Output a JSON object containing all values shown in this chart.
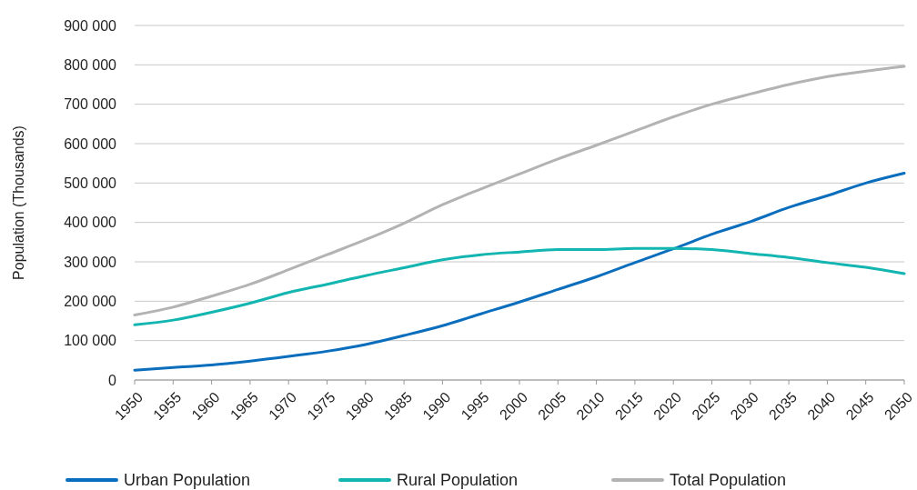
{
  "chart_data": {
    "type": "line",
    "ylabel": "Population (Thousands)",
    "categories": [
      "1950",
      "1955",
      "1960",
      "1965",
      "1970",
      "1975",
      "1980",
      "1985",
      "1990",
      "1995",
      "2000",
      "2005",
      "2010",
      "2015",
      "2020",
      "2025",
      "2030",
      "2035",
      "2040",
      "2045",
      "2050"
    ],
    "series": [
      {
        "name": "Urban Population",
        "color": "#0a6ebd",
        "values": [
          25000,
          32000,
          38000,
          48000,
          60000,
          73000,
          90000,
          113000,
          138000,
          168000,
          198000,
          230000,
          262000,
          298000,
          333000,
          370000,
          402000,
          438000,
          468000,
          500000,
          525000
        ]
      },
      {
        "name": "Rural Population",
        "color": "#13b5b1",
        "values": [
          140000,
          152000,
          172000,
          195000,
          222000,
          243000,
          265000,
          285000,
          305000,
          318000,
          325000,
          331000,
          331000,
          334000,
          334000,
          331000,
          321000,
          311000,
          298000,
          286000,
          270000
        ]
      },
      {
        "name": "Total Population",
        "color": "#b3b3b3",
        "values": [
          165000,
          185000,
          213000,
          243000,
          280000,
          318000,
          356000,
          398000,
          445000,
          485000,
          523000,
          561000,
          596000,
          632000,
          668000,
          700000,
          726000,
          750000,
          770000,
          784000,
          796000
        ]
      }
    ],
    "ylim": [
      0,
      900000
    ],
    "yticks": [
      0,
      {
        "value": 100000,
        "label": "100 000"
      },
      {
        "value": 200000,
        "label": "200 000"
      },
      {
        "value": 300000,
        "label": "300 000"
      },
      {
        "value": 400000,
        "label": "400 000"
      },
      {
        "value": 500000,
        "label": "500 000"
      },
      {
        "value": 600000,
        "label": "600 000"
      },
      {
        "value": 700000,
        "label": "700 000"
      },
      {
        "value": 800000,
        "label": "800 000"
      },
      {
        "value": 900000,
        "label": "900 000"
      }
    ],
    "grid": "y",
    "legend": "bottom",
    "marker": "none",
    "line_style": "solid"
  }
}
